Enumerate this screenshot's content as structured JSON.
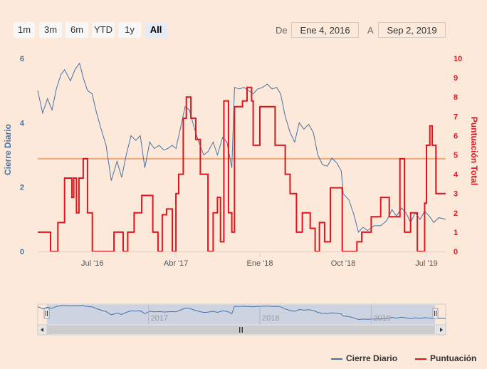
{
  "range_selector": {
    "buttons": [
      "1m",
      "3m",
      "6m",
      "YTD",
      "1y",
      "All"
    ],
    "active": "All",
    "from_label": "De",
    "from_value": "Ene 4, 2016",
    "to_label": "A",
    "to_value": "Sep 2, 2019"
  },
  "colors": {
    "series_1": "#4572a7",
    "series_2": "#e0141e",
    "plot_line": "#f0a87a",
    "background": "#fde9d9",
    "navigator_mask": "#cdd3e0"
  },
  "chart_data": {
    "type": "line",
    "xrange": [
      "2016-01-04",
      "2019-09-02"
    ],
    "x_ticks": [
      {
        "date": "2016-07-01",
        "label": "Jul '16"
      },
      {
        "date": "2017-04-01",
        "label": "Abr '17"
      },
      {
        "date": "2018-01-01",
        "label": "Ene '18"
      },
      {
        "date": "2018-10-01",
        "label": "Oct '18"
      },
      {
        "date": "2019-07-01",
        "label": "Jul '19"
      }
    ],
    "y_left": {
      "label": "Cierre Diario",
      "min": 0,
      "max": 6,
      "ticks": [
        0,
        2,
        4,
        6
      ]
    },
    "y_right": {
      "label": "Puntuación Total",
      "min": 0,
      "max": 10,
      "ticks": [
        0,
        1,
        2,
        3,
        4,
        5,
        6,
        7,
        8,
        9,
        10
      ]
    },
    "plot_line_right": 4.8,
    "navigator_years": [
      "2017",
      "2018",
      "2019"
    ],
    "legend_position": "bottom-right",
    "series": [
      {
        "name": "Cierre Diario",
        "axis": "left",
        "step": false,
        "points": [
          [
            "2016-01-04",
            5.0
          ],
          [
            "2016-01-20",
            4.3
          ],
          [
            "2016-02-05",
            4.75
          ],
          [
            "2016-02-20",
            4.4
          ],
          [
            "2016-03-05",
            5.05
          ],
          [
            "2016-03-20",
            5.5
          ],
          [
            "2016-04-01",
            5.65
          ],
          [
            "2016-04-20",
            5.3
          ],
          [
            "2016-05-05",
            5.65
          ],
          [
            "2016-05-20",
            5.85
          ],
          [
            "2016-06-01",
            5.4
          ],
          [
            "2016-06-15",
            5.0
          ],
          [
            "2016-06-30",
            4.9
          ],
          [
            "2016-07-15",
            4.3
          ],
          [
            "2016-07-30",
            3.8
          ],
          [
            "2016-08-15",
            3.3
          ],
          [
            "2016-09-01",
            2.2
          ],
          [
            "2016-09-20",
            2.8
          ],
          [
            "2016-10-05",
            2.3
          ],
          [
            "2016-10-20",
            3.0
          ],
          [
            "2016-11-05",
            3.6
          ],
          [
            "2016-11-20",
            3.45
          ],
          [
            "2016-12-05",
            3.6
          ],
          [
            "2016-12-20",
            2.6
          ],
          [
            "2017-01-05",
            3.4
          ],
          [
            "2017-01-20",
            3.2
          ],
          [
            "2017-02-05",
            3.3
          ],
          [
            "2017-02-20",
            3.15
          ],
          [
            "2017-03-05",
            3.2
          ],
          [
            "2017-03-20",
            3.3
          ],
          [
            "2017-04-01",
            3.2
          ],
          [
            "2017-04-15",
            3.8
          ],
          [
            "2017-05-01",
            4.5
          ],
          [
            "2017-05-15",
            4.4
          ],
          [
            "2017-06-01",
            3.8
          ],
          [
            "2017-06-15",
            3.4
          ],
          [
            "2017-07-01",
            3.0
          ],
          [
            "2017-07-15",
            3.1
          ],
          [
            "2017-08-01",
            3.4
          ],
          [
            "2017-08-15",
            3.0
          ],
          [
            "2017-09-01",
            3.55
          ],
          [
            "2017-09-15",
            3.4
          ],
          [
            "2017-10-01",
            2.6
          ],
          [
            "2017-10-10",
            5.1
          ],
          [
            "2017-10-25",
            5.05
          ],
          [
            "2017-11-10",
            5.1
          ],
          [
            "2017-11-25",
            5.0
          ],
          [
            "2017-12-10",
            4.9
          ],
          [
            "2017-12-25",
            5.05
          ],
          [
            "2018-01-10",
            5.1
          ],
          [
            "2018-01-25",
            5.2
          ],
          [
            "2018-02-10",
            5.05
          ],
          [
            "2018-02-25",
            5.1
          ],
          [
            "2018-03-10",
            4.9
          ],
          [
            "2018-03-25",
            4.2
          ],
          [
            "2018-04-10",
            3.7
          ],
          [
            "2018-04-25",
            3.4
          ],
          [
            "2018-05-10",
            4.0
          ],
          [
            "2018-05-25",
            3.8
          ],
          [
            "2018-06-10",
            3.95
          ],
          [
            "2018-06-25",
            3.7
          ],
          [
            "2018-07-10",
            3.0
          ],
          [
            "2018-07-25",
            2.7
          ],
          [
            "2018-08-10",
            2.65
          ],
          [
            "2018-08-25",
            2.9
          ],
          [
            "2018-09-10",
            2.75
          ],
          [
            "2018-09-25",
            2.5
          ],
          [
            "2018-10-01",
            1.8
          ],
          [
            "2018-10-20",
            1.6
          ],
          [
            "2018-11-05",
            1.15
          ],
          [
            "2018-11-20",
            0.6
          ],
          [
            "2018-12-05",
            0.75
          ],
          [
            "2018-12-20",
            0.65
          ],
          [
            "2019-01-10",
            0.8
          ],
          [
            "2019-02-01",
            0.8
          ],
          [
            "2019-02-20",
            0.95
          ],
          [
            "2019-03-10",
            1.3
          ],
          [
            "2019-03-25",
            1.1
          ],
          [
            "2019-04-10",
            1.35
          ],
          [
            "2019-04-25",
            1.2
          ],
          [
            "2019-05-10",
            0.9
          ],
          [
            "2019-05-25",
            1.2
          ],
          [
            "2019-06-10",
            1.0
          ],
          [
            "2019-06-25",
            1.25
          ],
          [
            "2019-07-10",
            1.1
          ],
          [
            "2019-07-25",
            0.9
          ],
          [
            "2019-08-10",
            1.05
          ],
          [
            "2019-09-02",
            1.0
          ]
        ]
      },
      {
        "name": "Puntuación",
        "axis": "right",
        "step": true,
        "points": [
          [
            "2016-01-04",
            1.0
          ],
          [
            "2016-02-15",
            0.0
          ],
          [
            "2016-03-10",
            1.5
          ],
          [
            "2016-04-01",
            3.8
          ],
          [
            "2016-04-25",
            2.8
          ],
          [
            "2016-05-01",
            3.8
          ],
          [
            "2016-05-10",
            2.0
          ],
          [
            "2016-05-18",
            3.8
          ],
          [
            "2016-06-01",
            4.8
          ],
          [
            "2016-06-15",
            2.0
          ],
          [
            "2016-07-01",
            0.0
          ],
          [
            "2016-09-10",
            1.0
          ],
          [
            "2016-10-10",
            0.0
          ],
          [
            "2016-10-25",
            1.0
          ],
          [
            "2016-11-15",
            2.0
          ],
          [
            "2016-12-10",
            2.9
          ],
          [
            "2017-01-15",
            1.0
          ],
          [
            "2017-02-01",
            0.0
          ],
          [
            "2017-02-15",
            1.9
          ],
          [
            "2017-03-01",
            2.2
          ],
          [
            "2017-03-20",
            0.0
          ],
          [
            "2017-04-01",
            3.0
          ],
          [
            "2017-04-10",
            4.0
          ],
          [
            "2017-04-25",
            6.9
          ],
          [
            "2017-05-05",
            8.0
          ],
          [
            "2017-05-20",
            6.9
          ],
          [
            "2017-06-05",
            5.8
          ],
          [
            "2017-06-20",
            4.0
          ],
          [
            "2017-07-01",
            4.0
          ],
          [
            "2017-07-15",
            0.0
          ],
          [
            "2017-08-01",
            2.0
          ],
          [
            "2017-08-15",
            2.8
          ],
          [
            "2017-08-25",
            0.5
          ],
          [
            "2017-09-05",
            7.8
          ],
          [
            "2017-09-20",
            2.0
          ],
          [
            "2017-10-01",
            1.0
          ],
          [
            "2017-10-10",
            7.5
          ],
          [
            "2017-11-05",
            7.8
          ],
          [
            "2017-11-20",
            8.5
          ],
          [
            "2017-12-05",
            7.8
          ],
          [
            "2017-12-10",
            5.5
          ],
          [
            "2018-01-01",
            7.5
          ],
          [
            "2018-01-15",
            7.5
          ],
          [
            "2018-02-20",
            5.5
          ],
          [
            "2018-03-25",
            4.0
          ],
          [
            "2018-04-10",
            3.0
          ],
          [
            "2018-05-01",
            1.0
          ],
          [
            "2018-05-20",
            2.0
          ],
          [
            "2018-06-15",
            1.2
          ],
          [
            "2018-07-01",
            0.0
          ],
          [
            "2018-07-15",
            1.5
          ],
          [
            "2018-08-01",
            0.5
          ],
          [
            "2018-08-20",
            3.3
          ],
          [
            "2018-09-05",
            3.3
          ],
          [
            "2018-09-28",
            0.0
          ],
          [
            "2018-11-15",
            0.5
          ],
          [
            "2018-12-01",
            1.0
          ],
          [
            "2019-01-01",
            1.8
          ],
          [
            "2019-02-01",
            2.8
          ],
          [
            "2019-02-15",
            2.8
          ],
          [
            "2019-03-01",
            1.8
          ],
          [
            "2019-04-05",
            4.8
          ],
          [
            "2019-04-20",
            1.0
          ],
          [
            "2019-05-10",
            2.0
          ],
          [
            "2019-06-01",
            0.0
          ],
          [
            "2019-06-25",
            2.5
          ],
          [
            "2019-07-01",
            5.5
          ],
          [
            "2019-07-12",
            6.5
          ],
          [
            "2019-07-20",
            5.5
          ],
          [
            "2019-08-01",
            3.0
          ],
          [
            "2019-09-02",
            3.0
          ]
        ]
      }
    ]
  }
}
